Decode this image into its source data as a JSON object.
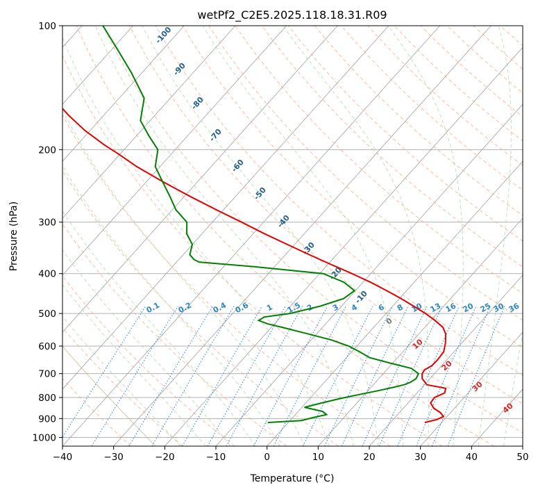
{
  "chart_data": {
    "type": "line",
    "title": "wetPf2_C2E5.2025.118.18.31.R09",
    "xlabel": "Temperature (°C)",
    "ylabel": "Pressure (hPa)",
    "xlim": [
      -40,
      50
    ],
    "ylim": [
      1050,
      100
    ],
    "y_scale": "log",
    "x_ticks": [
      -40,
      -30,
      -20,
      -10,
      0,
      10,
      20,
      30,
      40,
      50
    ],
    "y_ticks": [
      100,
      200,
      300,
      400,
      500,
      600,
      700,
      800,
      900,
      1000
    ],
    "grid": true,
    "series": [
      {
        "name": "",
        "color": "#e00000",
        "pressure": [
          920,
          905,
          890,
          870,
          850,
          825,
          800,
          780,
          760,
          745,
          720,
          700,
          685,
          670,
          650,
          620,
          590,
          560,
          540,
          520,
          500,
          480,
          460,
          440,
          420,
          400,
          380,
          360,
          340,
          320,
          300,
          280,
          260,
          240,
          220,
          205,
          195,
          180,
          165,
          150,
          135,
          120,
          110,
          105,
          100
        ],
        "temperature": [
          26.7,
          28.5,
          29.3,
          28.0,
          26.0,
          24.4,
          24.2,
          25.4,
          24.8,
          20.5,
          18.5,
          17.6,
          17.4,
          18.1,
          18.2,
          18.0,
          16.8,
          15.2,
          13.5,
          10.8,
          7.7,
          4.1,
          0.3,
          -3.9,
          -8.5,
          -13.7,
          -19.4,
          -25.3,
          -31.4,
          -37.8,
          -44.3,
          -51.4,
          -58.8,
          -66.5,
          -74.5,
          -80.3,
          -84.6,
          -90.9,
          -96.9,
          -102.9,
          -109.2,
          -115.6,
          -120.8,
          -123.9,
          -127.4
        ]
      },
      {
        "name": "",
        "color": "#008000",
        "pressure": [
          920,
          910,
          895,
          880,
          865,
          845,
          825,
          805,
          790,
          770,
          755,
          745,
          735,
          720,
          700,
          680,
          660,
          640,
          620,
          600,
          580,
          560,
          540,
          530,
          520,
          510,
          500,
          490,
          480,
          460,
          440,
          420,
          400,
          385,
          375,
          370,
          360,
          340,
          320,
          300,
          280,
          260,
          240,
          220,
          200,
          185,
          170,
          150,
          130,
          115,
          100
        ],
        "dewpoint": [
          -4.0,
          2.2,
          4.0,
          6.1,
          4.8,
          0.5,
          3.1,
          5.9,
          8.4,
          12.0,
          14.5,
          16.0,
          16.8,
          17.3,
          16.9,
          14.6,
          9.5,
          4.5,
          1.6,
          -1.6,
          -6.0,
          -11.8,
          -18.0,
          -21.3,
          -23.7,
          -23.2,
          -18.8,
          -16.5,
          -14.2,
          -10.9,
          -10.2,
          -13.7,
          -19.3,
          -33.8,
          -45.6,
          -47.0,
          -48.7,
          -50.0,
          -53.0,
          -55.0,
          -59.3,
          -62.8,
          -66.7,
          -70.9,
          -73.4,
          -77.6,
          -81.9,
          -85.1,
          -92.1,
          -98.5,
          -105.9
        ]
      }
    ],
    "dry_adiabat_labels": [
      "-100",
      "-90",
      "-80",
      "-70",
      "-60",
      "-50",
      "-40",
      "-30",
      "-20",
      "-10"
    ],
    "mixing_ratio_labels": [
      "0.1",
      "0.2",
      "0.4",
      "0.6",
      "1",
      "1.5",
      "2",
      "3",
      "4",
      "6",
      "8",
      "10",
      "13",
      "16",
      "20",
      "25",
      "30",
      "36"
    ],
    "moist_adiabat_labels": [
      "0",
      "10",
      "20",
      "30",
      "40"
    ]
  }
}
